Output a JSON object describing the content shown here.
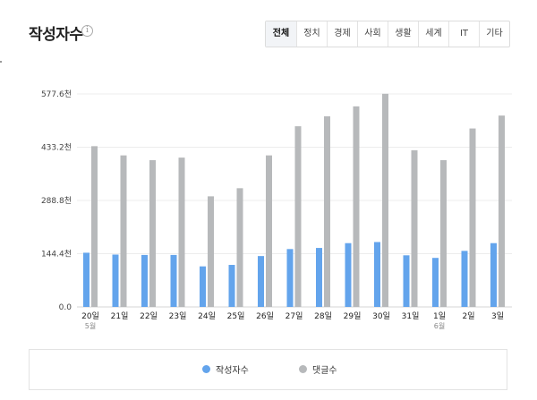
{
  "header": {
    "title": "작성자수",
    "info_icon": "info-circle-icon"
  },
  "tabs": [
    {
      "label": "전체",
      "active": true
    },
    {
      "label": "정치",
      "active": false
    },
    {
      "label": "경제",
      "active": false
    },
    {
      "label": "사회",
      "active": false
    },
    {
      "label": "생활",
      "active": false
    },
    {
      "label": "세계",
      "active": false
    },
    {
      "label": "IT",
      "active": false
    },
    {
      "label": "기타",
      "active": false
    }
  ],
  "chart_data": {
    "type": "bar",
    "title": "작성자수",
    "categories": [
      "20일",
      "21일",
      "22일",
      "23일",
      "24일",
      "25일",
      "26일",
      "27일",
      "28일",
      "29일",
      "30일",
      "31일",
      "1일",
      "2일",
      "3일"
    ],
    "category_sublabels": [
      "5월",
      "",
      "",
      "",
      "",
      "",
      "",
      "",
      "",
      "",
      "",
      "",
      "6월",
      "",
      ""
    ],
    "series": [
      {
        "name": "작성자수",
        "color": "#63a4ec",
        "values": [
          147,
          142,
          141,
          141,
          110,
          114,
          138,
          157,
          160,
          173,
          176,
          140,
          133,
          152,
          173
        ]
      },
      {
        "name": "댓글수",
        "color": "#b7b9bb",
        "values": [
          436,
          411,
          398,
          405,
          300,
          322,
          411,
          490,
          517,
          544,
          578,
          425,
          398,
          484,
          519
        ]
      }
    ],
    "yticks": [
      "0.0",
      "144.4천",
      "288.8천",
      "433.2천",
      "577.6천"
    ],
    "ytick_values": [
      0,
      144.4,
      288.8,
      433.2,
      577.6
    ],
    "ylim": [
      0,
      577.6
    ],
    "yunit": "천",
    "grid": true,
    "legend_position": "bottom"
  }
}
